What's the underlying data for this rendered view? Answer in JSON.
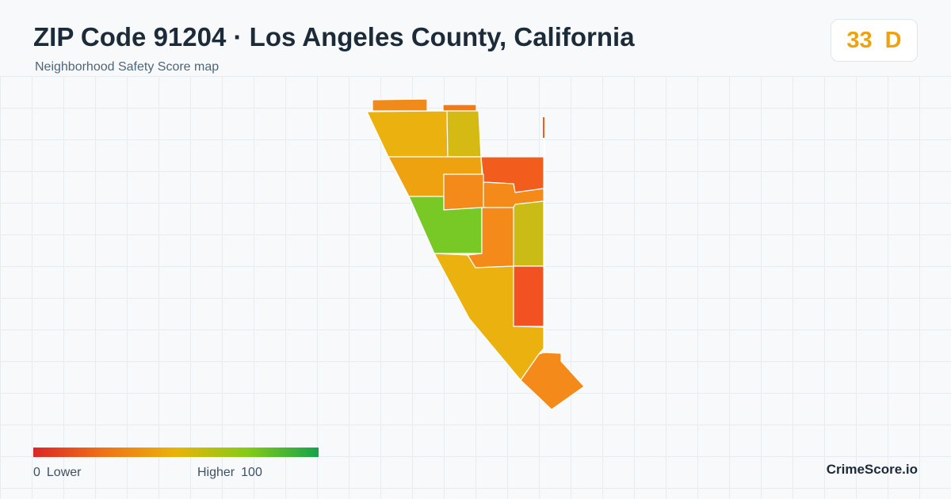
{
  "header": {
    "title": "ZIP Code 91204 · Los Angeles County, California",
    "subtitle": "Neighborhood Safety Score map"
  },
  "score": {
    "value": "33",
    "grade": "D",
    "color": "#eea20f"
  },
  "map": {
    "regions": [
      {
        "id": "top-strip-left",
        "color": "#f08a1a"
      },
      {
        "id": "top-strip-right",
        "color": "#f07a1a"
      },
      {
        "id": "north-west",
        "color": "#ebb10e"
      },
      {
        "id": "north-east",
        "color": "#d4ba12"
      },
      {
        "id": "mid-west",
        "color": "#eea20f"
      },
      {
        "id": "east-red",
        "color": "#f25c1c"
      },
      {
        "id": "center-orange",
        "color": "#f38a1a"
      },
      {
        "id": "center-small",
        "color": "#f38a1a"
      },
      {
        "id": "green",
        "color": "#78c925"
      },
      {
        "id": "center-lower",
        "color": "#f38a1a"
      },
      {
        "id": "east-lime",
        "color": "#cbbb16"
      },
      {
        "id": "south-large",
        "color": "#ebb10e"
      },
      {
        "id": "south-red",
        "color": "#f25222"
      },
      {
        "id": "south-tip",
        "color": "#f38a1a"
      }
    ]
  },
  "legend": {
    "min_value": "0",
    "min_label": "Lower",
    "max_label": "Higher",
    "max_value": "100"
  },
  "brand": "CrimeScore.io"
}
